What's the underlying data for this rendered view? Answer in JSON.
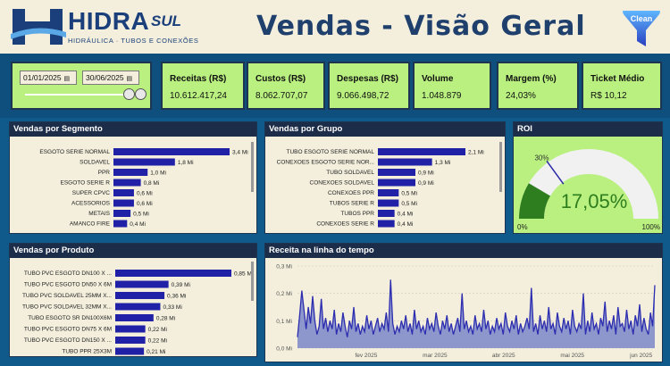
{
  "header": {
    "logo_text": "HIDRA",
    "logo_sul": "SUL",
    "logo_sub": "HIDRÁULICA · TUBOS E CONEXÕES",
    "title": "Vendas - Visão Geral",
    "clean_label": "Clean"
  },
  "filters": {
    "start_date": "01/01/2025",
    "end_date": "30/06/2025"
  },
  "kpis": [
    {
      "label": "Receitas (R$)",
      "value": "10.612.417,24"
    },
    {
      "label": "Custos (R$)",
      "value": "8.062.707,07"
    },
    {
      "label": "Despesas (R$)",
      "value": "9.066.498,72"
    },
    {
      "label": "Volume",
      "value": "1.048.879"
    },
    {
      "label": "Margem (%)",
      "value": "24,03%"
    },
    {
      "label": "Ticket Médio",
      "value": "R$ 10,12"
    }
  ],
  "colors": {
    "bar": "#2121a8",
    "panel_head": "#1c2d4a",
    "kpi_bg": "#b9f07f",
    "roi_fill": "#2e7d1f",
    "line": "#2d2db0",
    "area": "#8d97cc"
  },
  "chart_data": [
    {
      "type": "bar",
      "title": "Vendas por Segmento",
      "categories": [
        "ESGOTO SERIE NORMAL",
        "SOLDAVEL",
        "PPR",
        "ESGOTO SERIE R",
        "SUPER CPVC",
        "ACESSORIOS",
        "METAIS",
        "AMANCO FIRE"
      ],
      "values": [
        3.4,
        1.8,
        1.0,
        0.8,
        0.6,
        0.6,
        0.5,
        0.4
      ],
      "data_labels": [
        "3,4 Mi",
        "1,8 Mi",
        "1,0 Mi",
        "0,8 Mi",
        "0,6 Mi",
        "0,6 Mi",
        "0,5 Mi",
        "0,4 Mi"
      ]
    },
    {
      "type": "bar",
      "title": "Vendas por Grupo",
      "categories": [
        "TUBO ESGOTO SERIE NORMAL",
        "CONEXOES ESGOTO SERIE NOR...",
        "TUBO SOLDAVEL",
        "CONEXOES SOLDAVEL",
        "CONEXOES PPR",
        "TUBOS SERIE R",
        "TUBOS PPR",
        "CONEXOES SERIE R"
      ],
      "values": [
        2.1,
        1.3,
        0.9,
        0.9,
        0.5,
        0.5,
        0.4,
        0.4
      ],
      "data_labels": [
        "2,1 Mi",
        "1,3 Mi",
        "0,9 Mi",
        "0,9 Mi",
        "0,5 Mi",
        "0,5 Mi",
        "0,4 Mi",
        "0,4 Mi"
      ]
    },
    {
      "type": "bar",
      "title": "Vendas por Produto",
      "categories": [
        "TUBO PVC ESGOTO DN100 X ...",
        "TUBO PVC ESGOTO DN50 X 6M",
        "TUBO PVC SOLDAVEL 25MM X...",
        "TUBO PVC SOLDAVEL 32MM X...",
        "TUBO ESGOTO SR DN100X6M",
        "TUBO PVC ESGOTO DN75 X 6M",
        "TUBO PVC ESGOTO DN150 X ...",
        "TUBO PPR 25X3M"
      ],
      "values": [
        0.85,
        0.39,
        0.36,
        0.33,
        0.28,
        0.22,
        0.22,
        0.21
      ],
      "data_labels": [
        "0,85 Mi",
        "0,39 Mi",
        "0,36 Mi",
        "0,33 Mi",
        "0,28 Mi",
        "0,22 Mi",
        "0,22 Mi",
        "0,21 Mi"
      ]
    },
    {
      "type": "gauge",
      "title": "ROI",
      "value": 17.05,
      "value_label": "17,05%",
      "target": 30,
      "target_label": "30%",
      "min_label": "0%",
      "max_label": "100%",
      "range": [
        0,
        100
      ]
    },
    {
      "type": "area",
      "title": "Receita na linha do tempo",
      "y_ticks": [
        0,
        0.1,
        0.2,
        0.3
      ],
      "y_tick_labels": [
        "0,0 Mi",
        "0,1 Mi",
        "0,2 Mi",
        "0,3 Mi"
      ],
      "x_tick_labels": [
        "fev 2025",
        "mar 2025",
        "abr 2025",
        "mai 2025",
        "jun 2025"
      ],
      "ylim": [
        0,
        0.3
      ],
      "values": [
        0.04,
        0.12,
        0.21,
        0.14,
        0.07,
        0.15,
        0.09,
        0.19,
        0.1,
        0.05,
        0.08,
        0.18,
        0.07,
        0.11,
        0.06,
        0.1,
        0.07,
        0.14,
        0.05,
        0.09,
        0.06,
        0.13,
        0.08,
        0.04,
        0.1,
        0.07,
        0.15,
        0.06,
        0.09,
        0.05,
        0.08,
        0.06,
        0.12,
        0.07,
        0.1,
        0.05,
        0.08,
        0.11,
        0.06,
        0.09,
        0.07,
        0.13,
        0.06,
        0.25,
        0.09,
        0.05,
        0.08,
        0.06,
        0.1,
        0.07,
        0.12,
        0.06,
        0.09,
        0.05,
        0.14,
        0.07,
        0.1,
        0.06,
        0.08,
        0.05,
        0.11,
        0.07,
        0.09,
        0.06,
        0.13,
        0.08,
        0.05,
        0.1,
        0.07,
        0.12,
        0.06,
        0.09,
        0.05,
        0.08,
        0.11,
        0.06,
        0.2,
        0.07,
        0.1,
        0.06,
        0.08,
        0.05,
        0.12,
        0.07,
        0.09,
        0.06,
        0.14,
        0.07,
        0.1,
        0.05,
        0.08,
        0.06,
        0.11,
        0.07,
        0.09,
        0.05,
        0.13,
        0.08,
        0.06,
        0.1,
        0.07,
        0.12,
        0.05,
        0.09,
        0.06,
        0.08,
        0.11,
        0.07,
        0.22,
        0.06,
        0.09,
        0.05,
        0.12,
        0.07,
        0.1,
        0.06,
        0.15,
        0.07,
        0.09,
        0.05,
        0.13,
        0.08,
        0.06,
        0.11,
        0.07,
        0.1,
        0.05,
        0.14,
        0.08,
        0.06,
        0.09,
        0.07,
        0.2,
        0.05,
        0.1,
        0.06,
        0.13,
        0.07,
        0.09,
        0.05,
        0.11,
        0.08,
        0.17,
        0.06,
        0.1,
        0.07,
        0.12,
        0.05,
        0.15,
        0.08,
        0.09,
        0.06,
        0.14,
        0.07,
        0.1,
        0.05,
        0.12,
        0.08,
        0.16,
        0.06,
        0.11,
        0.07,
        0.05,
        0.13,
        0.08,
        0.23
      ]
    }
  ]
}
